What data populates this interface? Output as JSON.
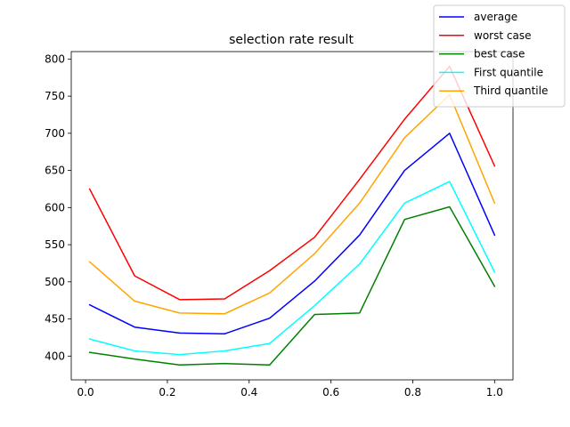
{
  "chart_data": {
    "type": "line",
    "title": "selection rate result",
    "xlabel": "",
    "ylabel": "",
    "x": [
      0.01,
      0.12,
      0.23,
      0.34,
      0.45,
      0.56,
      0.67,
      0.78,
      0.89,
      1.0
    ],
    "xlim": [
      -0.035,
      1.045
    ],
    "ylim": [
      368,
      810
    ],
    "xticks": [
      0.0,
      0.2,
      0.4,
      0.6,
      0.8,
      1.0
    ],
    "xtick_labels": [
      "0.0",
      "0.2",
      "0.4",
      "0.6",
      "0.8",
      "1.0"
    ],
    "yticks": [
      400,
      450,
      500,
      550,
      600,
      650,
      700,
      750,
      800
    ],
    "ytick_labels": [
      "400",
      "450",
      "500",
      "550",
      "600",
      "650",
      "700",
      "750",
      "800"
    ],
    "grid": false,
    "legend_position": "top-right",
    "series": [
      {
        "name": "average",
        "color": "#0000ff",
        "values": [
          469,
          439,
          431,
          430,
          451,
          501,
          563,
          650,
          700,
          563
        ]
      },
      {
        "name": "worst case",
        "color": "#ff0000",
        "values": [
          625,
          508,
          476,
          477,
          515,
          560,
          638,
          719,
          790,
          656
        ]
      },
      {
        "name": "best case",
        "color": "#008000",
        "values": [
          405,
          396,
          388,
          390,
          388,
          456,
          458,
          584,
          601,
          494
        ]
      },
      {
        "name": "First quantile",
        "color": "#00ffff",
        "values": [
          423,
          407,
          402,
          407,
          417,
          468,
          524,
          606,
          635,
          513
        ]
      },
      {
        "name": "Third quantile",
        "color": "#ffa500",
        "values": [
          527,
          474,
          458,
          457,
          485,
          538,
          606,
          694,
          752,
          606
        ]
      }
    ]
  }
}
